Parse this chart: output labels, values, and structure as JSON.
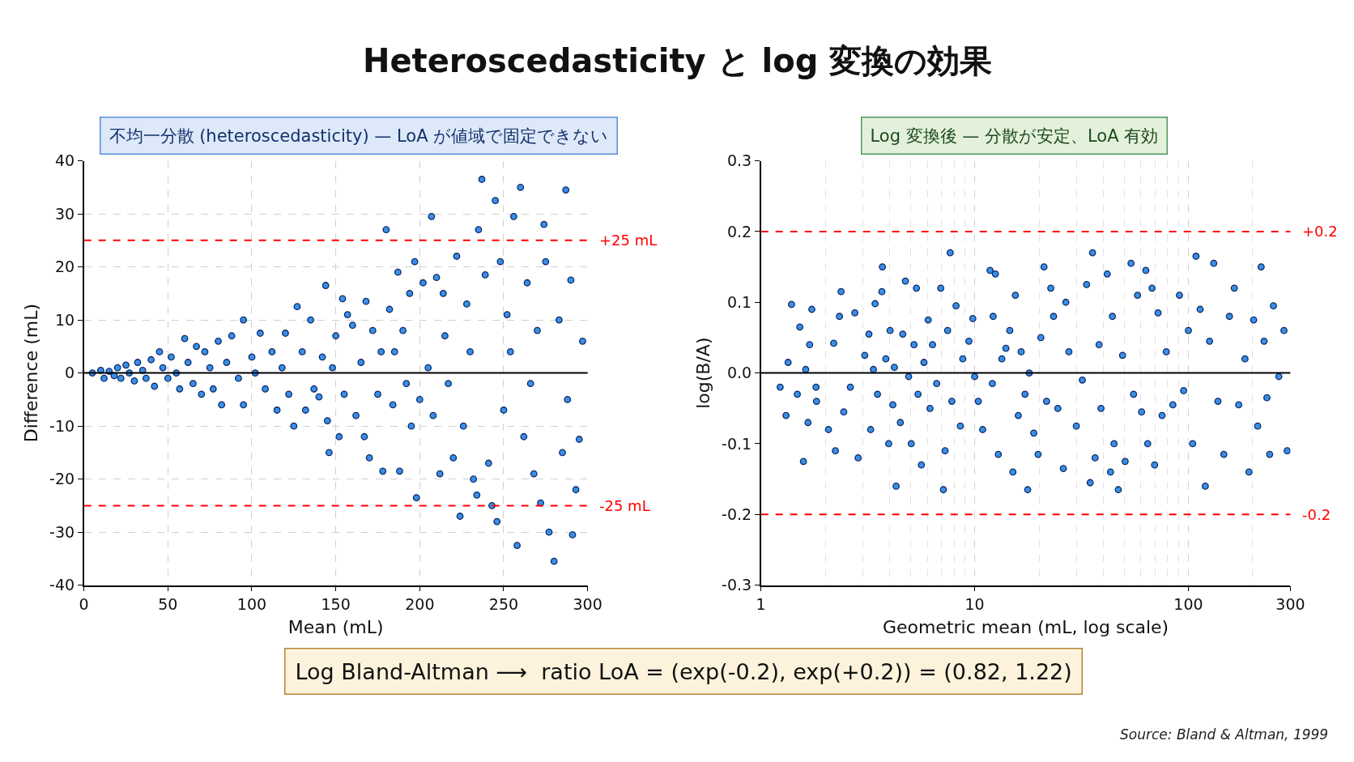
{
  "chart_data": [
    {
      "type": "scatter",
      "title": "Heteroscedasticity と log 変換の効果",
      "subtitle": "不均一分散 (heteroscedasticity) — LoA が値域で固定できない",
      "xlabel": "Mean (mL)",
      "ylabel": "Difference (mL)",
      "xlim": [
        0,
        300
      ],
      "xticks": [
        0,
        50,
        100,
        150,
        200,
        250,
        300
      ],
      "ylim": [
        -40,
        40
      ],
      "yticks": [
        -40,
        -30,
        -20,
        -10,
        0,
        10,
        20,
        30,
        40
      ],
      "grid": true,
      "marker": "circle",
      "series": [
        {
          "color": "#3a8ee6",
          "x": [
            5,
            10,
            12,
            15,
            18,
            20,
            22,
            25,
            27,
            30,
            32,
            35,
            37,
            40,
            42,
            45,
            47,
            50,
            52,
            55,
            57,
            60,
            62,
            65,
            67,
            70,
            72,
            75,
            77,
            80,
            82,
            85,
            88,
            92,
            95,
            95,
            100,
            102,
            105,
            108,
            112,
            115,
            118,
            120,
            122,
            125,
            127,
            130,
            132,
            135,
            137,
            140,
            142,
            144,
            145,
            146,
            148,
            150,
            152,
            154,
            155,
            157,
            160,
            162,
            165,
            167,
            168,
            170,
            172,
            175,
            177,
            178,
            180,
            182,
            184,
            185,
            187,
            188,
            190,
            192,
            194,
            195,
            197,
            198,
            200,
            202,
            205,
            207,
            208,
            210,
            212,
            214,
            215,
            217,
            220,
            222,
            224,
            226,
            228,
            230,
            232,
            234,
            235,
            237,
            239,
            241,
            243,
            245,
            246,
            248,
            250,
            252,
            254,
            256,
            258,
            260,
            262,
            264,
            266,
            268,
            270,
            272,
            274,
            275,
            277,
            280,
            283,
            285,
            287,
            288,
            290,
            291,
            293,
            295,
            297
          ],
          "values": [
            0,
            0.5,
            -1,
            0.3,
            -0.5,
            1,
            -1,
            1.5,
            0,
            -1.5,
            2,
            0.5,
            -1,
            2.5,
            -2.5,
            4,
            1,
            -1,
            3,
            0,
            -3,
            6.5,
            2,
            -2,
            5,
            -4,
            4,
            1,
            -3,
            6,
            -6,
            2,
            7,
            -1,
            10,
            -6,
            3,
            0,
            7.5,
            -3,
            4,
            -7,
            1,
            7.5,
            -4,
            -10,
            12.5,
            4,
            -7,
            10,
            -3,
            -4.5,
            3,
            16.5,
            -9,
            -15,
            1,
            7,
            -12,
            14,
            -4,
            11,
            9,
            -8,
            2,
            -12,
            13.5,
            -16,
            8,
            -4,
            4,
            -18.5,
            27,
            12,
            -6,
            4,
            19,
            -18.5,
            8,
            -2,
            15,
            -10,
            21,
            -23.5,
            -5,
            17,
            1,
            29.5,
            -8,
            18,
            -19,
            15,
            7,
            -2,
            -16,
            22,
            -27,
            -10,
            13,
            4,
            -20,
            -23,
            27,
            36.5,
            18.5,
            -17,
            -25,
            32.5,
            -28,
            21,
            -7,
            11,
            4,
            29.5,
            -32.5,
            35,
            -12,
            17,
            -2,
            -19,
            8,
            -24.5,
            28,
            21,
            -30,
            -35.5,
            10,
            -15,
            34.5,
            -5,
            17.5,
            -30.5,
            -22,
            -12.5,
            6
          ]
        }
      ],
      "ref_lines": [
        {
          "axis": "y",
          "value": 0,
          "color": "#000000",
          "line_style": "solid"
        },
        {
          "axis": "y",
          "value": 25,
          "label": "+25 mL",
          "color": "#ff0000",
          "line_style": "dashed"
        },
        {
          "axis": "y",
          "value": -25,
          "label": "-25 mL",
          "color": "#ff0000",
          "line_style": "dashed"
        }
      ]
    },
    {
      "type": "scatter",
      "subtitle": "Log 変換後 — 分散が安定、LoA 有効",
      "xlabel": "Geometric mean (mL, log scale)",
      "ylabel": "log(B/A)",
      "log": "x",
      "xlim": [
        1,
        300
      ],
      "xticks": [
        1,
        10,
        100,
        300
      ],
      "ylim": [
        -0.3,
        0.3
      ],
      "yticks": [
        -0.3,
        -0.2,
        -0.1,
        {
          "value": 0,
          "label": "0.0"
        },
        0.1,
        0.2,
        0.3
      ],
      "grid": "x",
      "marker": "circle",
      "series": [
        {
          "color": "#3a8ee6",
          "x": [
            1.23,
            1.31,
            1.34,
            1.39,
            1.48,
            1.52,
            1.58,
            1.62,
            1.66,
            1.69,
            1.73,
            1.81,
            1.82,
            2.07,
            2.19,
            2.23,
            2.33,
            2.37,
            2.44,
            2.62,
            2.75,
            2.85,
            3.06,
            3.2,
            3.26,
            3.36,
            3.42,
            3.51,
            3.68,
            3.7,
            3.84,
            3.96,
            4.02,
            4.14,
            4.21,
            4.29,
            4.49,
            4.61,
            4.74,
            4.91,
            5.05,
            5.2,
            5.34,
            5.43,
            5.63,
            5.79,
            6.06,
            6.18,
            6.35,
            6.64,
            6.94,
            7.14,
            7.27,
            7.47,
            7.68,
            7.82,
            8.18,
            8.57,
            8.8,
            9.4,
            9.8,
            10.0,
            10.4,
            10.9,
            11.8,
            12.1,
            12.2,
            12.5,
            12.9,
            13.4,
            14.0,
            14.6,
            15.1,
            15.5,
            16.0,
            16.5,
            17.2,
            17.7,
            18.0,
            18.9,
            19.8,
            20.4,
            21.1,
            21.7,
            22.7,
            23.4,
            24.5,
            26.0,
            26.7,
            27.6,
            29.9,
            31.9,
            33.4,
            34.7,
            35.6,
            36.6,
            38.2,
            39.0,
            41.7,
            43.2,
            44.1,
            44.9,
            47.0,
            49.2,
            50.6,
            53.9,
            55.4,
            57.8,
            60.4,
            63.2,
            64.5,
            67.6,
            69.5,
            72.1,
            75.3,
            78.8,
            84.6,
            90.8,
            95.0,
            100,
            104.7,
            108.5,
            113.5,
            120,
            125.6,
            131.4,
            137.5,
            146.5,
            155.6,
            164,
            172,
            184,
            192,
            202,
            211,
            219,
            226,
            233,
            240,
            250,
            265,
            280,
            290
          ],
          "values": [
            -0.02,
            -0.06,
            0.015,
            0.097,
            -0.03,
            0.065,
            -0.125,
            0.005,
            -0.07,
            0.04,
            0.09,
            -0.02,
            -0.04,
            -0.08,
            0.042,
            -0.11,
            0.08,
            0.115,
            -0.055,
            -0.02,
            0.085,
            -0.12,
            0.025,
            0.055,
            -0.08,
            0.005,
            0.098,
            -0.03,
            0.115,
            0.15,
            0.02,
            -0.1,
            0.06,
            -0.045,
            0.008,
            -0.16,
            -0.07,
            0.055,
            0.13,
            -0.005,
            -0.1,
            0.04,
            0.12,
            -0.03,
            -0.13,
            0.015,
            0.075,
            -0.05,
            0.04,
            -0.015,
            0.12,
            -0.165,
            -0.11,
            0.06,
            0.17,
            -0.04,
            0.095,
            -0.075,
            0.02,
            0.045,
            0.077,
            -0.005,
            -0.04,
            -0.08,
            0.145,
            -0.015,
            0.08,
            0.14,
            -0.115,
            0.02,
            0.035,
            0.06,
            -0.14,
            0.11,
            -0.06,
            0.03,
            -0.03,
            -0.165,
            0.0,
            -0.085,
            -0.115,
            0.05,
            0.15,
            -0.04,
            0.12,
            0.08,
            -0.05,
            -0.135,
            0.1,
            0.03,
            -0.075,
            -0.01,
            0.125,
            -0.155,
            0.17,
            -0.12,
            0.04,
            -0.05,
            0.14,
            -0.14,
            0.08,
            -0.1,
            -0.165,
            0.025,
            -0.125,
            0.155,
            -0.03,
            0.11,
            -0.055,
            0.145,
            -0.1,
            0.12,
            -0.13,
            0.085,
            -0.06,
            0.03,
            -0.045,
            0.11,
            -0.025,
            0.06,
            -0.1,
            0.165,
            0.09,
            -0.16,
            0.045,
            0.155,
            -0.04,
            -0.115,
            0.08,
            0.12,
            -0.045,
            0.02,
            -0.14,
            0.075,
            -0.075,
            0.15,
            0.045,
            -0.035,
            -0.115,
            0.095,
            -0.005,
            0.06,
            -0.11
          ]
        }
      ],
      "ref_lines": [
        {
          "axis": "y",
          "value": 0,
          "color": "#000000",
          "line_style": "solid"
        },
        {
          "axis": "y",
          "value": 0.2,
          "label": "+0.2",
          "color": "#ff0000",
          "line_style": "dashed"
        },
        {
          "axis": "y",
          "value": -0.2,
          "label": "-0.2",
          "color": "#ff0000",
          "line_style": "dashed"
        }
      ],
      "annotations": [
        "Log Bland-Altman ⟶  ratio LoA = (exp(-0.2), exp(+0.2)) = (0.82, 1.22)",
        "Source: Bland & Altman, 1999"
      ]
    }
  ]
}
